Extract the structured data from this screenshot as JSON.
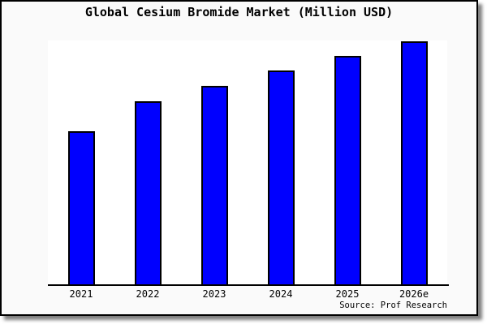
{
  "window": {
    "background_color": "#fafafa",
    "frame_border_color": "#000000",
    "plot_background_color": "#ffffff"
  },
  "chart_data": {
    "type": "bar",
    "title": "Global Cesium Bromide Market (Million USD)",
    "categories": [
      "2021",
      "2022",
      "2023",
      "2024",
      "2025",
      "2026e"
    ],
    "values": [
      63,
      75.3,
      81.7,
      88,
      94,
      100
    ],
    "values_note": "y-axis has no tick labels or gridlines; values are relative bar heights with the 2026e bar = 100",
    "xlabel": "",
    "ylabel": "",
    "ylim": [
      0,
      100
    ],
    "grid": false,
    "legend": false,
    "bar_color": "#0000ff",
    "bar_border_color": "#000000",
    "source": "Source: Prof Research"
  }
}
